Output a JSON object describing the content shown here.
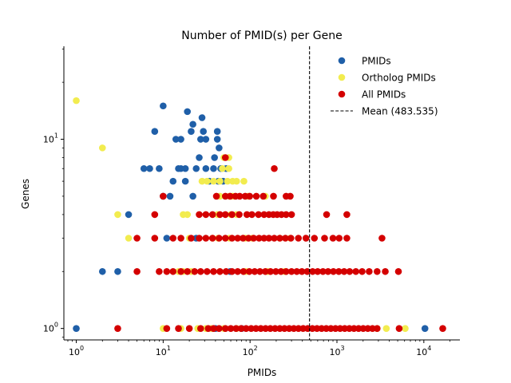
{
  "chart_data": {
    "type": "scatter",
    "title": "Number of PMID(s) per Gene",
    "xlabel": "PMIDs",
    "ylabel": "Genes",
    "xscale": "log",
    "yscale": "log",
    "xlim": [
      0.72,
      26000
    ],
    "ylim": [
      0.87,
      31
    ],
    "x_ticks": [
      {
        "base": "10",
        "exp": "0",
        "value": 1
      },
      {
        "base": "10",
        "exp": "1",
        "value": 10
      },
      {
        "base": "10",
        "exp": "2",
        "value": 100
      },
      {
        "base": "10",
        "exp": "3",
        "value": 1000
      },
      {
        "base": "10",
        "exp": "4",
        "value": 10000
      }
    ],
    "y_ticks": [
      {
        "base": "10",
        "exp": "0",
        "value": 1
      },
      {
        "base": "10",
        "exp": "1",
        "value": 10
      }
    ],
    "legend_position": "top-right",
    "mean_line": {
      "label": "Mean (483.535)",
      "value": 483.535,
      "color": "#000000"
    },
    "series": [
      {
        "name": "PMIDs",
        "color": "#1f5fa8",
        "points": [
          [
            1,
            1
          ],
          [
            2,
            2
          ],
          [
            3,
            2
          ],
          [
            4,
            4
          ],
          [
            10,
            15
          ],
          [
            8,
            11
          ],
          [
            19,
            14
          ],
          [
            28,
            13
          ],
          [
            22,
            12
          ],
          [
            21,
            11
          ],
          [
            29,
            11
          ],
          [
            42,
            11
          ],
          [
            14,
            10
          ],
          [
            16,
            10
          ],
          [
            27,
            10
          ],
          [
            31,
            10
          ],
          [
            42,
            10
          ],
          [
            44,
            9
          ],
          [
            26,
            8
          ],
          [
            39,
            8
          ],
          [
            16,
            7
          ],
          [
            6,
            7
          ],
          [
            7,
            7
          ],
          [
            9,
            7
          ],
          [
            15,
            7
          ],
          [
            18,
            7
          ],
          [
            24,
            7
          ],
          [
            31,
            7
          ],
          [
            38,
            7
          ],
          [
            46,
            7
          ],
          [
            53,
            7
          ],
          [
            13,
            6
          ],
          [
            18,
            6
          ],
          [
            34,
            6
          ],
          [
            43,
            6
          ],
          [
            49,
            6
          ],
          [
            10,
            5
          ],
          [
            12,
            5
          ],
          [
            22,
            5
          ],
          [
            11,
            3
          ],
          [
            24,
            3
          ],
          [
            59,
            2
          ],
          [
            10300,
            1
          ],
          [
            40,
            1
          ],
          [
            80,
            1
          ]
        ]
      },
      {
        "name": "Ortholog PMIDs",
        "color": "#f2ec4f",
        "points": [
          [
            1,
            16
          ],
          [
            2,
            9
          ],
          [
            50,
            8
          ],
          [
            57,
            8
          ],
          [
            28,
            6
          ],
          [
            32,
            6
          ],
          [
            38,
            6
          ],
          [
            45,
            6
          ],
          [
            55,
            6
          ],
          [
            63,
            6
          ],
          [
            70,
            6
          ],
          [
            85,
            6
          ],
          [
            48,
            7
          ],
          [
            57,
            7
          ],
          [
            45,
            5
          ],
          [
            58,
            5
          ],
          [
            63,
            5
          ],
          [
            95,
            5
          ],
          [
            150,
            5
          ],
          [
            17,
            4
          ],
          [
            19,
            4
          ],
          [
            42,
            4
          ],
          [
            60,
            4
          ],
          [
            70,
            4
          ],
          [
            3,
            4
          ],
          [
            4,
            3
          ],
          [
            20,
            3
          ],
          [
            37,
            3
          ],
          [
            43,
            3
          ],
          [
            58,
            3
          ],
          [
            88,
            3
          ],
          [
            106,
            3
          ],
          [
            220,
            3
          ],
          [
            290,
            3
          ],
          [
            15,
            2
          ],
          [
            17,
            2
          ],
          [
            21,
            2
          ],
          [
            45,
            2
          ],
          [
            90,
            2
          ],
          [
            160,
            2
          ],
          [
            250,
            2
          ],
          [
            10,
            1
          ],
          [
            16,
            1
          ],
          [
            25,
            1
          ],
          [
            31,
            1
          ],
          [
            36,
            1
          ],
          [
            50,
            1
          ],
          [
            70,
            1
          ],
          [
            3700,
            1
          ],
          [
            6100,
            1
          ],
          [
            2900,
            1
          ]
        ]
      },
      {
        "name": "All PMIDs",
        "color": "#d40000",
        "points": [
          [
            52,
            8
          ],
          [
            190,
            7
          ],
          [
            10,
            5
          ],
          [
            41,
            5
          ],
          [
            52,
            5
          ],
          [
            59,
            5
          ],
          [
            68,
            5
          ],
          [
            76,
            5
          ],
          [
            88,
            5
          ],
          [
            99,
            5
          ],
          [
            118,
            5
          ],
          [
            142,
            5
          ],
          [
            186,
            5
          ],
          [
            260,
            5
          ],
          [
            290,
            5
          ],
          [
            8,
            4
          ],
          [
            26,
            4
          ],
          [
            31,
            4
          ],
          [
            37,
            4
          ],
          [
            45,
            4
          ],
          [
            52,
            4
          ],
          [
            62,
            4
          ],
          [
            75,
            4
          ],
          [
            92,
            4
          ],
          [
            105,
            4
          ],
          [
            125,
            4
          ],
          [
            145,
            4
          ],
          [
            165,
            4
          ],
          [
            185,
            4
          ],
          [
            205,
            4
          ],
          [
            230,
            4
          ],
          [
            260,
            4
          ],
          [
            300,
            4
          ],
          [
            760,
            4
          ],
          [
            1300,
            4
          ],
          [
            5,
            3
          ],
          [
            8,
            3
          ],
          [
            13,
            3
          ],
          [
            16,
            3
          ],
          [
            21,
            3
          ],
          [
            26,
            3
          ],
          [
            31,
            3
          ],
          [
            37,
            3
          ],
          [
            44,
            3
          ],
          [
            52,
            3
          ],
          [
            62,
            3
          ],
          [
            72,
            3
          ],
          [
            83,
            3
          ],
          [
            96,
            3
          ],
          [
            110,
            3
          ],
          [
            127,
            3
          ],
          [
            145,
            3
          ],
          [
            165,
            3
          ],
          [
            190,
            3
          ],
          [
            220,
            3
          ],
          [
            255,
            3
          ],
          [
            295,
            3
          ],
          [
            360,
            3
          ],
          [
            440,
            3
          ],
          [
            550,
            3
          ],
          [
            720,
            3
          ],
          [
            900,
            3
          ],
          [
            1060,
            3
          ],
          [
            1300,
            3
          ],
          [
            3300,
            3
          ],
          [
            5,
            2
          ],
          [
            9,
            2
          ],
          [
            11,
            2
          ],
          [
            13,
            2
          ],
          [
            16,
            2
          ],
          [
            19,
            2
          ],
          [
            23,
            2
          ],
          [
            27,
            2
          ],
          [
            32,
            2
          ],
          [
            38,
            2
          ],
          [
            45,
            2
          ],
          [
            53,
            2
          ],
          [
            62,
            2
          ],
          [
            72,
            2
          ],
          [
            84,
            2
          ],
          [
            98,
            2
          ],
          [
            113,
            2
          ],
          [
            130,
            2
          ],
          [
            150,
            2
          ],
          [
            172,
            2
          ],
          [
            198,
            2
          ],
          [
            227,
            2
          ],
          [
            260,
            2
          ],
          [
            300,
            2
          ],
          [
            345,
            2
          ],
          [
            395,
            2
          ],
          [
            455,
            2
          ],
          [
            525,
            2
          ],
          [
            600,
            2
          ],
          [
            690,
            2
          ],
          [
            790,
            2
          ],
          [
            910,
            2
          ],
          [
            1050,
            2
          ],
          [
            1210,
            2
          ],
          [
            1400,
            2
          ],
          [
            1650,
            2
          ],
          [
            1950,
            2
          ],
          [
            2350,
            2
          ],
          [
            2900,
            2
          ],
          [
            3600,
            2
          ],
          [
            5100,
            2
          ],
          [
            3,
            1
          ],
          [
            11,
            1
          ],
          [
            15,
            1
          ],
          [
            20,
            1
          ],
          [
            27,
            1
          ],
          [
            33,
            1
          ],
          [
            38,
            1
          ],
          [
            44,
            1
          ],
          [
            52,
            1
          ],
          [
            60,
            1
          ],
          [
            69,
            1
          ],
          [
            79,
            1
          ],
          [
            90,
            1
          ],
          [
            103,
            1
          ],
          [
            117,
            1
          ],
          [
            133,
            1
          ],
          [
            151,
            1
          ],
          [
            171,
            1
          ],
          [
            194,
            1
          ],
          [
            220,
            1
          ],
          [
            249,
            1
          ],
          [
            282,
            1
          ],
          [
            319,
            1
          ],
          [
            361,
            1
          ],
          [
            408,
            1
          ],
          [
            461,
            1
          ],
          [
            521,
            1
          ],
          [
            589,
            1
          ],
          [
            666,
            1
          ],
          [
            753,
            1
          ],
          [
            851,
            1
          ],
          [
            962,
            1
          ],
          [
            1087,
            1
          ],
          [
            1229,
            1
          ],
          [
            1389,
            1
          ],
          [
            1570,
            1
          ],
          [
            1775,
            1
          ],
          [
            2006,
            1
          ],
          [
            2268,
            1
          ],
          [
            2564,
            1
          ],
          [
            2898,
            1
          ],
          [
            5200,
            1
          ],
          [
            16500,
            1
          ]
        ]
      }
    ]
  }
}
